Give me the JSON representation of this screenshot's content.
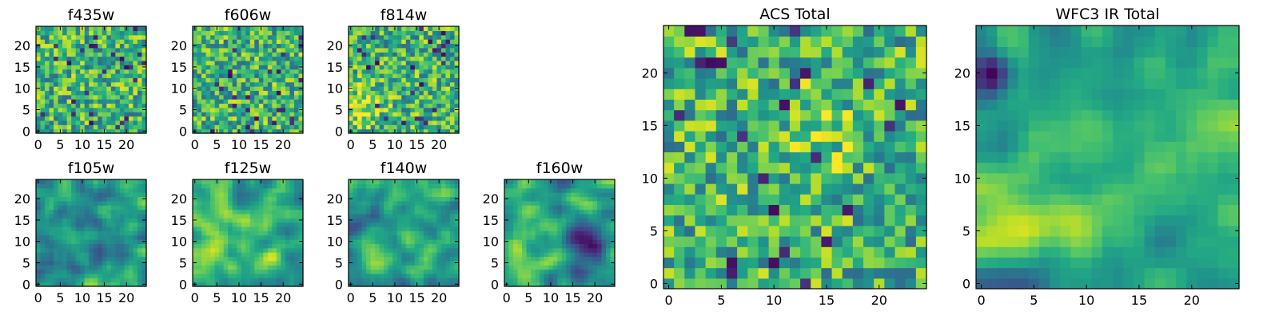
{
  "chart_data": [
    {
      "type": "heatmap",
      "title": "f435w",
      "grid_size": 25,
      "xticks": [
        "0",
        "5",
        "10",
        "15",
        "20"
      ],
      "yticks": [
        "0",
        "5",
        "10",
        "15",
        "20"
      ],
      "xlim": [
        0,
        24
      ],
      "ylim": [
        0,
        24
      ],
      "seed": 11,
      "colormap": "viridis",
      "vmin": 0,
      "vmax": 1,
      "structure": "noise"
    },
    {
      "type": "heatmap",
      "title": "f606w",
      "grid_size": 25,
      "xticks": [
        "0",
        "5",
        "10",
        "15",
        "20"
      ],
      "yticks": [
        "0",
        "5",
        "10",
        "15",
        "20"
      ],
      "xlim": [
        0,
        24
      ],
      "ylim": [
        0,
        24
      ],
      "seed": 23,
      "colormap": "viridis",
      "vmin": 0,
      "vmax": 1,
      "structure": "noise"
    },
    {
      "type": "heatmap",
      "title": "f814w",
      "grid_size": 25,
      "xticks": [
        "0",
        "5",
        "10",
        "15",
        "20"
      ],
      "yticks": [
        "0",
        "5",
        "10",
        "15",
        "20"
      ],
      "xlim": [
        0,
        24
      ],
      "ylim": [
        0,
        24
      ],
      "seed": 37,
      "colormap": "viridis",
      "vmin": 0,
      "vmax": 1,
      "structure": "noise-bright-left"
    },
    {
      "type": "heatmap",
      "title": "f105w",
      "grid_size": 25,
      "xticks": [
        "0",
        "5",
        "10",
        "15",
        "20"
      ],
      "yticks": [
        "0",
        "5",
        "10",
        "15",
        "20"
      ],
      "xlim": [
        0,
        24
      ],
      "ylim": [
        0,
        24
      ],
      "seed": 41,
      "colormap": "viridis",
      "vmin": 0,
      "vmax": 1,
      "structure": "smooth"
    },
    {
      "type": "heatmap",
      "title": "f125w",
      "grid_size": 25,
      "xticks": [
        "0",
        "5",
        "10",
        "15",
        "20"
      ],
      "yticks": [
        "0",
        "5",
        "10",
        "15",
        "20"
      ],
      "xlim": [
        0,
        24
      ],
      "ylim": [
        0,
        24
      ],
      "seed": 53,
      "colormap": "viridis",
      "vmin": 0,
      "vmax": 1,
      "structure": "smooth-bright"
    },
    {
      "type": "heatmap",
      "title": "f140w",
      "grid_size": 25,
      "xticks": [
        "0",
        "5",
        "10",
        "15",
        "20"
      ],
      "yticks": [
        "0",
        "5",
        "10",
        "15",
        "20"
      ],
      "xlim": [
        0,
        24
      ],
      "ylim": [
        0,
        24
      ],
      "seed": 67,
      "colormap": "viridis",
      "vmin": 0,
      "vmax": 1,
      "structure": "smooth"
    },
    {
      "type": "heatmap",
      "title": "f160w",
      "grid_size": 25,
      "xticks": [
        "0",
        "5",
        "10",
        "15",
        "20"
      ],
      "yticks": [
        "0",
        "5",
        "10",
        "15",
        "20"
      ],
      "xlim": [
        0,
        24
      ],
      "ylim": [
        0,
        24
      ],
      "seed": 71,
      "colormap": "viridis",
      "vmin": 0,
      "vmax": 1,
      "structure": "smooth-dark-right"
    },
    {
      "type": "heatmap",
      "title": "ACS Total",
      "grid_size": 25,
      "xticks": [
        "0",
        "5",
        "10",
        "15",
        "20"
      ],
      "yticks": [
        "0",
        "5",
        "10",
        "15",
        "20"
      ],
      "xlim": [
        0,
        24
      ],
      "ylim": [
        0,
        24
      ],
      "seed": 83,
      "colormap": "viridis",
      "vmin": 0,
      "vmax": 1,
      "structure": "noise-bright"
    },
    {
      "type": "heatmap",
      "title": "WFC3 IR Total",
      "grid_size": 25,
      "xticks": [
        "0",
        "5",
        "10",
        "15",
        "20"
      ],
      "yticks": [
        "0",
        "5",
        "10",
        "15",
        "20"
      ],
      "xlim": [
        0,
        24
      ],
      "ylim": [
        0,
        24
      ],
      "seed": 97,
      "colormap": "viridis",
      "vmin": 0,
      "vmax": 1,
      "structure": "smooth-blob"
    }
  ]
}
